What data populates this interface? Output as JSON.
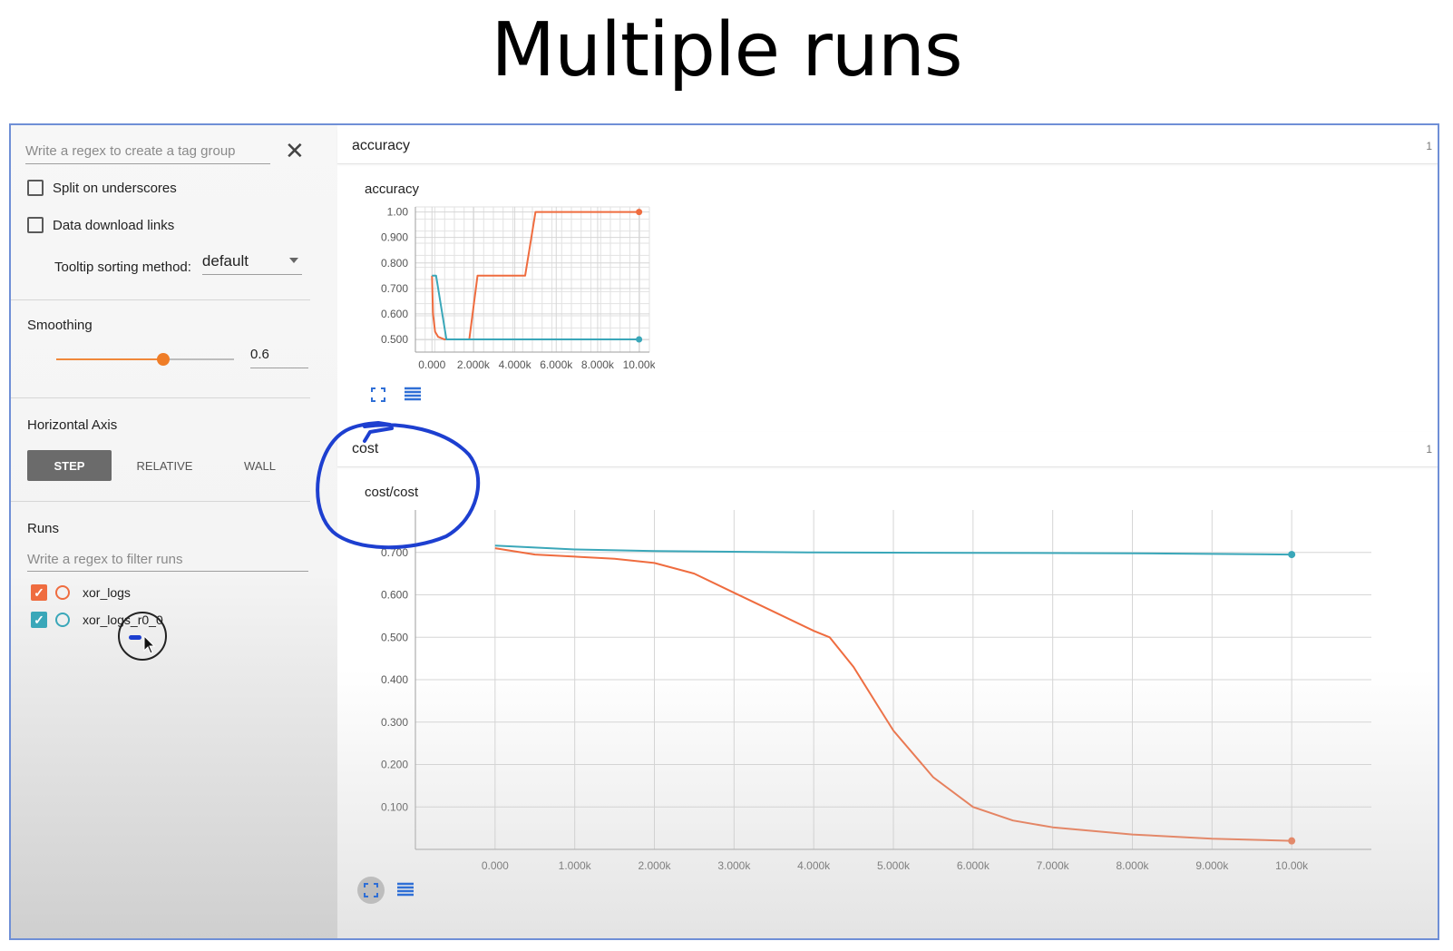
{
  "slide": {
    "title": "Multiple runs"
  },
  "sidebar": {
    "tag_regex_placeholder": "Write a regex to create a tag group",
    "split_underscores_label": "Split on underscores",
    "data_download_label": "Data download links",
    "tooltip_sorting_label": "Tooltip sorting method:",
    "tooltip_sorting_value": "default",
    "smoothing_label": "Smoothing",
    "smoothing_value": "0.6",
    "smoothing_level": 0.6,
    "horizontal_axis_label": "Horizontal Axis",
    "axis_buttons": {
      "step": "STEP",
      "relative": "RELATIVE",
      "wall": "WALL"
    },
    "runs_label": "Runs",
    "runs_filter_placeholder": "Write a regex to filter runs",
    "runs": [
      {
        "name": "xor_logs",
        "color": "#ef6c3f",
        "checked": true
      },
      {
        "name": "xor_logs_r0_0",
        "color": "#3aa7b9",
        "checked": true
      }
    ]
  },
  "main": {
    "sections": [
      {
        "title": "accuracy",
        "count": "1",
        "card_title": "accuracy"
      },
      {
        "title": "cost",
        "count": "1",
        "card_title": "cost/cost"
      }
    ]
  },
  "colors": {
    "orange": "#ef6c3f",
    "teal": "#3aa7b9",
    "annotation_blue": "#1d3fd0"
  },
  "icons": [
    "close-icon",
    "fit-domain-icon",
    "data-table-icon",
    "cursor-icon"
  ],
  "chart_data": [
    {
      "type": "line",
      "title": "accuracy",
      "xlabel": "",
      "ylabel": "",
      "xlim": [
        -800,
        10500
      ],
      "ylim": [
        0.45,
        1.02
      ],
      "x_ticks": [
        "0.000",
        "2.000k",
        "4.000k",
        "6.000k",
        "8.000k",
        "10.00k"
      ],
      "y_ticks": [
        "1.00",
        "0.900",
        "0.800",
        "0.700",
        "0.600",
        "0.500"
      ],
      "grid": true,
      "series": [
        {
          "name": "xor_logs",
          "color": "#ef6c3f",
          "x": [
            0,
            50,
            150,
            300,
            600,
            1800,
            2200,
            4500,
            5000,
            10000
          ],
          "y": [
            0.75,
            0.6,
            0.53,
            0.51,
            0.5,
            0.5,
            0.75,
            0.75,
            1.0,
            1.0
          ]
        },
        {
          "name": "xor_logs_r0_0",
          "color": "#3aa7b9",
          "x": [
            0,
            200,
            700,
            10000
          ],
          "y": [
            0.75,
            0.75,
            0.5,
            0.5
          ]
        }
      ]
    },
    {
      "type": "line",
      "title": "cost/cost",
      "xlabel": "",
      "ylabel": "",
      "xlim": [
        -1000,
        11000
      ],
      "ylim": [
        0.0,
        0.8
      ],
      "x_ticks": [
        "0.000",
        "1.000k",
        "2.000k",
        "3.000k",
        "4.000k",
        "5.000k",
        "6.000k",
        "7.000k",
        "8.000k",
        "9.000k",
        "10.00k"
      ],
      "y_ticks": [
        "0.700",
        "0.600",
        "0.500",
        "0.400",
        "0.300",
        "0.200",
        "0.100"
      ],
      "grid": true,
      "series": [
        {
          "name": "xor_logs",
          "color": "#ef6c3f",
          "x": [
            0,
            500,
            1000,
            1500,
            2000,
            2500,
            3000,
            3500,
            4000,
            4200,
            4500,
            4800,
            5000,
            5500,
            6000,
            6500,
            7000,
            8000,
            9000,
            10000
          ],
          "y": [
            0.71,
            0.695,
            0.69,
            0.685,
            0.675,
            0.65,
            0.605,
            0.56,
            0.515,
            0.5,
            0.43,
            0.34,
            0.28,
            0.17,
            0.1,
            0.068,
            0.052,
            0.035,
            0.025,
            0.02
          ]
        },
        {
          "name": "xor_logs_r0_0",
          "color": "#3aa7b9",
          "x": [
            0,
            1000,
            2000,
            4000,
            6000,
            8000,
            10000
          ],
          "y": [
            0.716,
            0.707,
            0.703,
            0.7,
            0.699,
            0.698,
            0.695
          ]
        }
      ]
    }
  ]
}
